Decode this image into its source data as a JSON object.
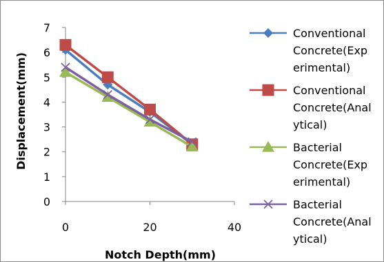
{
  "chart_data": {
    "type": "line",
    "title": "",
    "xlabel": "Notch Depth(mm)",
    "ylabel": "Displacement(mm)",
    "xlim": [
      0,
      40
    ],
    "ylim": [
      0,
      7
    ],
    "xticks": [
      0,
      20,
      40
    ],
    "yticks": [
      0,
      1,
      2,
      3,
      4,
      5,
      6,
      7
    ],
    "grid": false,
    "legend_position": "right",
    "x": [
      0,
      10,
      20,
      30
    ],
    "series": [
      {
        "name": "Conventional Concrete(Experimental)",
        "legend_lines": [
          "Conventional",
          "Concrete(Exp",
          "erimental)"
        ],
        "values": [
          6.1,
          4.7,
          3.6,
          2.3
        ],
        "color": "#4a7ebf",
        "marker": "diamond"
      },
      {
        "name": "Conventional Concrete(Analytical)",
        "legend_lines": [
          "Conventional",
          "Concrete(Anal",
          "ytical)"
        ],
        "values": [
          6.3,
          5.0,
          3.7,
          2.3
        ],
        "color": "#be4b48",
        "marker": "square"
      },
      {
        "name": "Bacterial Concrete(Experimental)",
        "legend_lines": [
          "Bacterial",
          "Concrete(Exp",
          "erimental)"
        ],
        "values": [
          5.2,
          4.2,
          3.2,
          2.2
        ],
        "color": "#98b954",
        "marker": "triangle"
      },
      {
        "name": "Bacterial Concrete(Analytical)",
        "legend_lines": [
          "Bacterial",
          "Concrete(Anal",
          "ytical)"
        ],
        "values": [
          5.4,
          4.3,
          3.3,
          2.4
        ],
        "color": "#7d60a0",
        "marker": "x"
      }
    ]
  }
}
